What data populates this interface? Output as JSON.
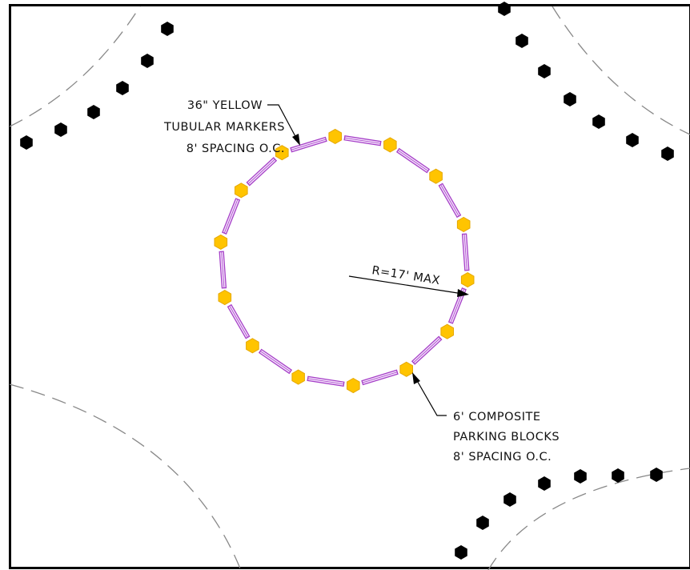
{
  "notes": {
    "tubular_markers": {
      "line1": "36\" YELLOW",
      "line2": "TUBULAR MARKERS",
      "line3": "8' SPACING O.C."
    },
    "parking_blocks": {
      "line1": "6' COMPOSITE",
      "line2": "PARKING BLOCKS",
      "line3": "8' SPACING O.C."
    },
    "radius": "R=17' MAX"
  },
  "colors": {
    "marker_fill": "#ffc400",
    "marker_stroke": "#e6a800",
    "block_stroke": "#a640c8",
    "block_fill": "#f4e2fb",
    "existing_marker": "#000000",
    "curb_line": "#888888",
    "border": "#000000"
  },
  "icons": {
    "tubular_marker": "hexagon",
    "existing_marker": "hexagon",
    "parking_block": "double-line-bar"
  }
}
